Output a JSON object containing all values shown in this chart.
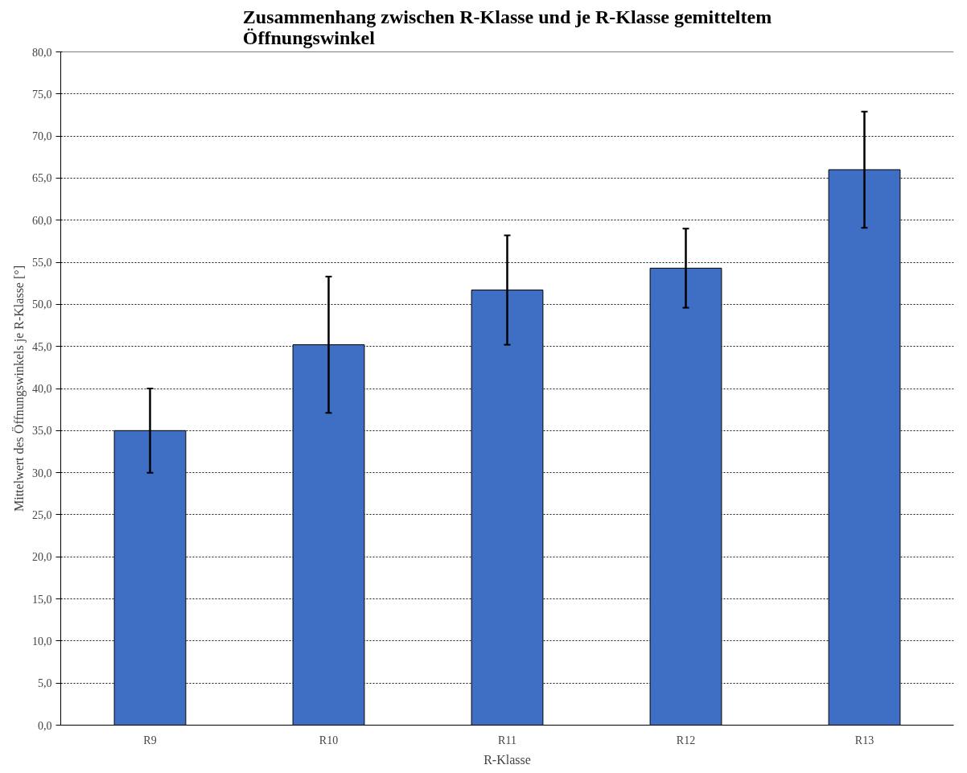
{
  "chart_data": {
    "type": "bar",
    "title": "Zusammenhang zwischen R-Klasse und je R-Klasse gemitteltem\nÖffnungswinkel",
    "xlabel": "R-Klasse",
    "ylabel": "Mittelwert des Öffnungswinkels je R-Klasse [°]",
    "categories": [
      "R9",
      "R10",
      "R11",
      "R12",
      "R13"
    ],
    "values": [
      35.0,
      45.2,
      51.7,
      54.3,
      66.0
    ],
    "errors": [
      5.0,
      8.1,
      6.5,
      4.7,
      6.9
    ],
    "color": "#3f6fc4",
    "ylim": [
      0,
      80
    ],
    "yticks": [
      {
        "value": 0,
        "label": "0,0"
      },
      {
        "value": 5,
        "label": "5,0"
      },
      {
        "value": 10,
        "label": "10,0"
      },
      {
        "value": 15,
        "label": "15,0"
      },
      {
        "value": 20,
        "label": "20,0"
      },
      {
        "value": 25,
        "label": "25,0"
      },
      {
        "value": 30,
        "label": "30,0"
      },
      {
        "value": 35,
        "label": "35,0"
      },
      {
        "value": 40,
        "label": "40,0"
      },
      {
        "value": 45,
        "label": "45,0"
      },
      {
        "value": 50,
        "label": "50,0"
      },
      {
        "value": 55,
        "label": "55,0"
      },
      {
        "value": 60,
        "label": "60,0"
      },
      {
        "value": 65,
        "label": "65,0"
      },
      {
        "value": 70,
        "label": "70,0"
      },
      {
        "value": 75,
        "label": "75,0"
      },
      {
        "value": 80,
        "label": "80,0"
      }
    ],
    "grid": "y"
  }
}
